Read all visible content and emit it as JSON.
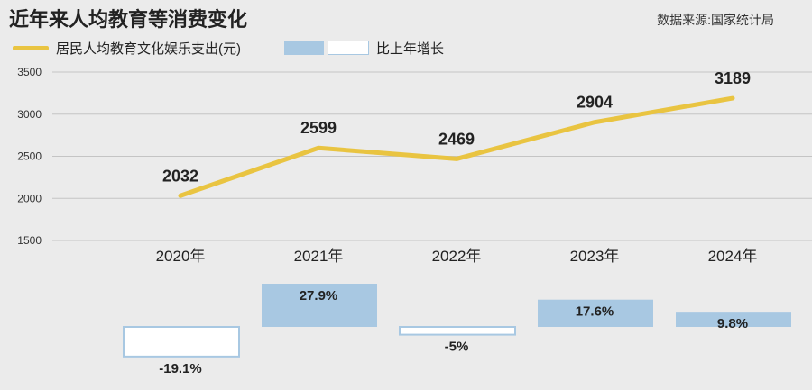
{
  "title": "近年来人均教育等消费变化",
  "source": "数据来源:国家统计局",
  "legend": {
    "line_label": "居民人均教育文化娱乐支出(元)",
    "bar_label": "比上年增长"
  },
  "colors": {
    "line": "#e9c441",
    "bar_fill": "#a8c8e2",
    "bar_outline": "#a8c8e2",
    "grid": "#c4c4c4",
    "text": "#222222"
  },
  "chart_data": {
    "type": "line",
    "categories": [
      "2020年",
      "2021年",
      "2022年",
      "2023年",
      "2024年"
    ],
    "series": [
      {
        "name": "居民人均教育文化娱乐支出(元)",
        "values": [
          2032,
          2599,
          2469,
          2904,
          3189
        ],
        "labels": [
          "2032",
          "2599",
          "2469",
          "2904",
          "3189"
        ]
      }
    ],
    "ylim": [
      1500,
      3500
    ],
    "yticks": [
      1500,
      2000,
      2500,
      3000,
      3500
    ],
    "grid": true,
    "bars": {
      "name": "比上年增长",
      "values": [
        -19.1,
        27.9,
        -5,
        17.6,
        9.8
      ],
      "labels": [
        "-19.1%",
        "27.9%",
        "-5%",
        "17.6%",
        "9.8%"
      ]
    }
  }
}
